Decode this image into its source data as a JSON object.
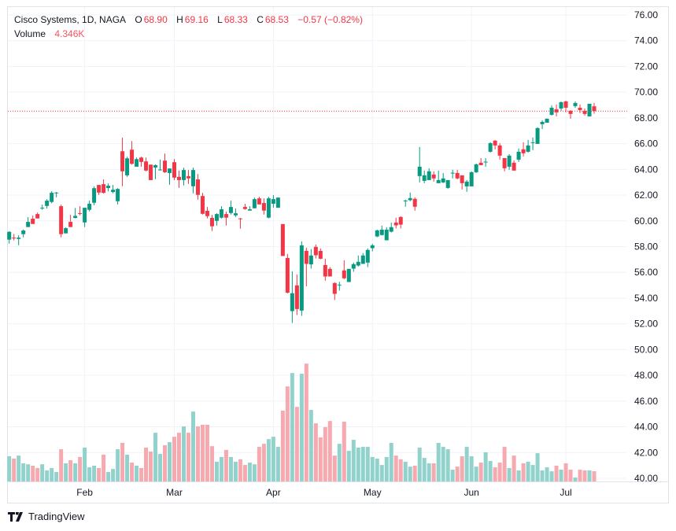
{
  "legend": {
    "symbol": "Cisco Systems, 1D, NAGA",
    "o_label": "O",
    "o": "68.90",
    "h_label": "H",
    "h": "69.16",
    "l_label": "L",
    "l": "68.33",
    "c_label": "C",
    "c": "68.53",
    "change": "−0.57 (−0.82%)",
    "volume_label": "Volume",
    "volume": "4.346K"
  },
  "brand": "TradingView",
  "colors": {
    "up": "#089981",
    "down": "#f23645",
    "vol_up": "#92d2cc",
    "vol_down": "#f7a9b0",
    "grid": "#f0f3fa",
    "border": "#e0e3eb"
  },
  "chart_data": {
    "type": "candlestick",
    "ylim": [
      40,
      76
    ],
    "y_ticks": [
      "40.00",
      "42.00",
      "44.00",
      "46.00",
      "48.00",
      "50.00",
      "52.00",
      "54.00",
      "56.00",
      "58.00",
      "60.00",
      "62.00",
      "64.00",
      "66.00",
      "68.00",
      "70.00",
      "72.00",
      "74.00",
      "76.00"
    ],
    "x_ticks": [
      {
        "label": "Feb",
        "index": 16
      },
      {
        "label": "Mar",
        "index": 35
      },
      {
        "label": "Apr",
        "index": 56
      },
      {
        "label": "May",
        "index": 77
      },
      {
        "label": "Jun",
        "index": 98
      },
      {
        "label": "Jul",
        "index": 118
      }
    ],
    "last_price": 68.53,
    "grid": true,
    "volume_unit": "K",
    "candles_ohlcv": [
      [
        58.54,
        59.19,
        58.24,
        59.15,
        10.7
      ],
      [
        58.7,
        58.99,
        58.48,
        58.66,
        9.7
      ],
      [
        58.6,
        58.89,
        58.11,
        58.7,
        11.0
      ],
      [
        58.97,
        59.33,
        58.72,
        59.25,
        7.7
      ],
      [
        59.52,
        60.29,
        59.52,
        59.92,
        7.3
      ],
      [
        60.17,
        60.41,
        59.76,
        59.76,
        6.7
      ],
      [
        60.53,
        60.65,
        60.19,
        60.19,
        5.7
      ],
      [
        60.98,
        61.26,
        60.86,
        61.02,
        7.3
      ],
      [
        61.16,
        61.69,
        60.96,
        61.57,
        4.7
      ],
      [
        61.47,
        62.3,
        61.37,
        62.18,
        5.7
      ],
      [
        62.15,
        62.24,
        61.83,
        62.2,
        4.0
      ],
      [
        61.14,
        61.26,
        58.72,
        58.97,
        13.7
      ],
      [
        59.03,
        59.5,
        59.03,
        59.43,
        7.7
      ],
      [
        59.92,
        60.47,
        59.52,
        59.52,
        9.0
      ],
      [
        60.23,
        61.0,
        60.19,
        60.39,
        7.7
      ],
      [
        60.6,
        61.14,
        60.43,
        60.55,
        10.4
      ],
      [
        59.88,
        61.02,
        59.52,
        61.02,
        14.4
      ],
      [
        60.86,
        61.57,
        60.74,
        61.33,
        6.0
      ],
      [
        61.41,
        62.67,
        61.22,
        62.54,
        6.7
      ],
      [
        62.79,
        62.79,
        62.02,
        62.2,
        5.7
      ],
      [
        62.85,
        63.22,
        62.12,
        62.18,
        11.4
      ],
      [
        62.55,
        62.91,
        62.3,
        62.73,
        4.0
      ],
      [
        62.24,
        62.79,
        62.14,
        62.42,
        5.3
      ],
      [
        61.53,
        62.54,
        61.28,
        62.48,
        13.7
      ],
      [
        65.41,
        66.47,
        62.69,
        63.85,
        16.4
      ],
      [
        63.54,
        64.98,
        63.42,
        64.86,
        11.4
      ],
      [
        65.53,
        66.2,
        64.37,
        64.43,
        8.0
      ],
      [
        64.21,
        64.92,
        64.21,
        64.8,
        6.7
      ],
      [
        64.92,
        64.98,
        64.21,
        64.58,
        5.7
      ],
      [
        64.62,
        64.92,
        63.85,
        63.91,
        14.4
      ],
      [
        64.37,
        64.37,
        63.17,
        63.17,
        12.7
      ],
      [
        64.15,
        64.39,
        63.24,
        64.33,
        20.7
      ],
      [
        63.97,
        64.76,
        63.91,
        63.99,
        11.7
      ],
      [
        64.68,
        65.23,
        63.72,
        63.78,
        15.4
      ],
      [
        63.72,
        64.07,
        62.81,
        64.07,
        16.7
      ],
      [
        64.56,
        64.8,
        63.17,
        63.36,
        19.0
      ],
      [
        63.42,
        63.91,
        62.56,
        63.17,
        20.7
      ],
      [
        63.17,
        64.13,
        62.75,
        63.95,
        23.4
      ],
      [
        63.48,
        63.95,
        62.87,
        63.3,
        20.7
      ],
      [
        62.69,
        64.13,
        62.14,
        63.95,
        29.7
      ],
      [
        63.22,
        63.64,
        61.65,
        62.02,
        23.4
      ],
      [
        61.93,
        62.18,
        60.49,
        60.55,
        24.1
      ],
      [
        60.78,
        61.08,
        60.19,
        60.37,
        24.1
      ],
      [
        60.23,
        60.47,
        59.21,
        59.58,
        15.0
      ],
      [
        60.0,
        60.59,
        59.64,
        60.53,
        8.4
      ],
      [
        60.25,
        61.14,
        60.19,
        60.9,
        10.4
      ],
      [
        60.53,
        60.72,
        59.64,
        60.25,
        13.4
      ],
      [
        60.61,
        61.57,
        60.49,
        61.08,
        10.4
      ],
      [
        60.43,
        60.96,
        60.31,
        60.59,
        8.4
      ],
      [
        60.19,
        60.23,
        59.39,
        60.15,
        9.4
      ],
      [
        61.08,
        61.33,
        60.86,
        60.92,
        7.0
      ],
      [
        60.8,
        61.14,
        60.8,
        60.9,
        8.0
      ],
      [
        60.98,
        61.81,
        60.98,
        61.69,
        7.3
      ],
      [
        61.75,
        61.87,
        61.28,
        61.28,
        14.7
      ],
      [
        61.39,
        61.75,
        60.49,
        60.8,
        16.0
      ],
      [
        60.25,
        61.87,
        60.19,
        61.75,
        18.0
      ],
      [
        61.33,
        62.0,
        61.02,
        61.69,
        19.0
      ],
      [
        61.02,
        61.81,
        61.02,
        61.81,
        14.7
      ],
      [
        59.75,
        59.75,
        57.27,
        57.27,
        30.1
      ],
      [
        57.12,
        57.43,
        54.37,
        54.42,
        40.4
      ],
      [
        52.99,
        56.08,
        52.07,
        54.38,
        46.1
      ],
      [
        54.99,
        55.84,
        52.68,
        53.15,
        31.7
      ],
      [
        53.03,
        58.41,
        52.62,
        58.1,
        45.8
      ],
      [
        57.67,
        57.92,
        54.92,
        56.66,
        50.1
      ],
      [
        56.62,
        57.8,
        56.29,
        57.31,
        30.4
      ],
      [
        57.98,
        58.16,
        57.08,
        57.33,
        24.7
      ],
      [
        57.67,
        57.86,
        57.02,
        57.06,
        18.7
      ],
      [
        56.57,
        57.06,
        55.35,
        55.68,
        23.1
      ],
      [
        56.27,
        56.41,
        55.68,
        55.68,
        25.7
      ],
      [
        55.17,
        55.23,
        53.85,
        54.33,
        11.0
      ],
      [
        55.0,
        55.27,
        54.58,
        55.05,
        16.0
      ],
      [
        56.15,
        56.94,
        55.47,
        55.54,
        25.4
      ],
      [
        55.25,
        56.27,
        55.25,
        56.27,
        13.0
      ],
      [
        56.29,
        56.76,
        56.05,
        56.64,
        17.7
      ],
      [
        56.53,
        57.31,
        56.45,
        56.82,
        14.4
      ],
      [
        56.66,
        57.49,
        56.66,
        57.31,
        14.7
      ],
      [
        56.76,
        57.86,
        56.41,
        57.74,
        14.7
      ],
      [
        57.88,
        58.22,
        57.63,
        58.1,
        10.4
      ],
      [
        58.79,
        59.32,
        58.73,
        59.26,
        9.7
      ],
      [
        58.9,
        59.63,
        58.86,
        59.32,
        7.0
      ],
      [
        58.49,
        59.51,
        58.49,
        59.32,
        10.4
      ],
      [
        59.16,
        59.87,
        59.1,
        59.51,
        16.4
      ],
      [
        59.87,
        60.24,
        59.41,
        59.65,
        11.0
      ],
      [
        60.3,
        60.36,
        59.41,
        59.71,
        9.4
      ],
      [
        61.56,
        61.65,
        61.1,
        61.58,
        8.4
      ],
      [
        61.61,
        62.2,
        61.52,
        61.77,
        6.3
      ],
      [
        61.71,
        61.83,
        60.79,
        61.1,
        6.7
      ],
      [
        63.48,
        65.74,
        62.99,
        64.21,
        14.4
      ],
      [
        63.11,
        63.91,
        62.93,
        63.54,
        10.0
      ],
      [
        63.17,
        64.09,
        63.17,
        63.85,
        7.7
      ],
      [
        63.6,
        63.85,
        63.05,
        63.3,
        7.7
      ],
      [
        62.93,
        63.91,
        62.93,
        63.17,
        16.4
      ],
      [
        62.99,
        63.72,
        62.93,
        63.3,
        14.7
      ],
      [
        62.56,
        63.17,
        62.5,
        63.17,
        13.7
      ],
      [
        63.7,
        63.97,
        63.3,
        63.74,
        5.0
      ],
      [
        63.72,
        63.97,
        63.23,
        63.3,
        6.3
      ],
      [
        63.54,
        63.54,
        62.44,
        62.93,
        10.7
      ],
      [
        62.68,
        63.17,
        62.26,
        63.05,
        14.7
      ],
      [
        62.68,
        63.85,
        62.68,
        63.78,
        10.7
      ],
      [
        63.78,
        64.46,
        63.72,
        64.39,
        6.3
      ],
      [
        64.52,
        64.88,
        64.33,
        64.33,
        8.0
      ],
      [
        64.56,
        64.88,
        64.21,
        64.6,
        12.4
      ],
      [
        65.37,
        66.11,
        65.31,
        66.04,
        8.7
      ],
      [
        66.23,
        66.29,
        65.56,
        65.86,
        6.0
      ],
      [
        65.86,
        66.04,
        64.76,
        65.07,
        8.0
      ],
      [
        64.88,
        64.88,
        63.85,
        64.09,
        14.7
      ],
      [
        64.21,
        65.19,
        63.97,
        65.07,
        5.7
      ],
      [
        64.52,
        64.7,
        63.91,
        63.91,
        11.0
      ],
      [
        64.76,
        65.62,
        64.58,
        65.37,
        4.7
      ],
      [
        65.56,
        66.11,
        65.01,
        65.25,
        7.7
      ],
      [
        65.37,
        66.29,
        65.31,
        65.86,
        8.4
      ],
      [
        66.08,
        66.47,
        65.49,
        66.11,
        7.0
      ],
      [
        65.98,
        67.27,
        65.98,
        67.21,
        12.0
      ],
      [
        67.51,
        67.82,
        67.14,
        67.69,
        4.7
      ],
      [
        67.63,
        67.94,
        67.63,
        67.94,
        6.0
      ],
      [
        68.24,
        68.98,
        68.18,
        68.79,
        4.3
      ],
      [
        68.67,
        69.04,
        68.12,
        68.43,
        6.7
      ],
      [
        68.73,
        69.28,
        68.55,
        69.22,
        5.0
      ],
      [
        69.28,
        69.34,
        68.43,
        68.79,
        7.7
      ],
      [
        68.55,
        68.61,
        67.94,
        68.31,
        5.0
      ],
      [
        68.92,
        69.28,
        68.79,
        69.16,
        1.7
      ],
      [
        68.79,
        69.04,
        68.37,
        68.61,
        5.0
      ],
      [
        68.55,
        68.73,
        68.18,
        68.31,
        4.7
      ],
      [
        68.12,
        69.1,
        68.12,
        69.1,
        4.7
      ],
      [
        68.9,
        69.16,
        68.33,
        68.53,
        4.346
      ]
    ]
  }
}
